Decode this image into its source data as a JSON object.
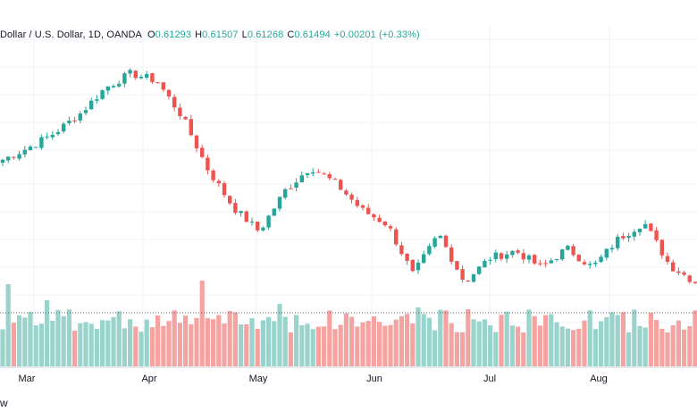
{
  "legend": {
    "symbol": "Dollar / U.S. Dollar, 1D, OANDA",
    "o_label": "O",
    "o_value": "0.61293",
    "h_label": "H",
    "h_value": "0.61507",
    "l_label": "L",
    "l_value": "0.61268",
    "c_label": "C",
    "c_value": "0.61494",
    "change": "+0.00201 (+0.33%)"
  },
  "footer_text": "w",
  "colors": {
    "up": "#26a69a",
    "down": "#ef5350",
    "up_volume": "#9ad3cc",
    "down_volume": "#f5a3a1",
    "grid": "#f0f3fa"
  },
  "chart_data": {
    "type": "candlestick",
    "x_tick_labels": [
      "Mar",
      "Apr",
      "May",
      "Jun",
      "Jul",
      "Aug"
    ],
    "close_path": [
      0.667,
      0.672,
      0.678,
      0.686,
      0.697,
      0.703,
      0.7,
      0.685,
      0.663,
      0.647,
      0.637,
      0.654,
      0.664,
      0.657,
      0.646,
      0.64,
      0.619,
      0.636,
      0.616,
      0.626,
      0.629,
      0.622,
      0.63,
      0.622,
      0.634,
      0.641,
      0.623,
      0.616
    ],
    "price_min": 0.605,
    "price_max": 0.715,
    "volume_level_line": "dotted"
  }
}
